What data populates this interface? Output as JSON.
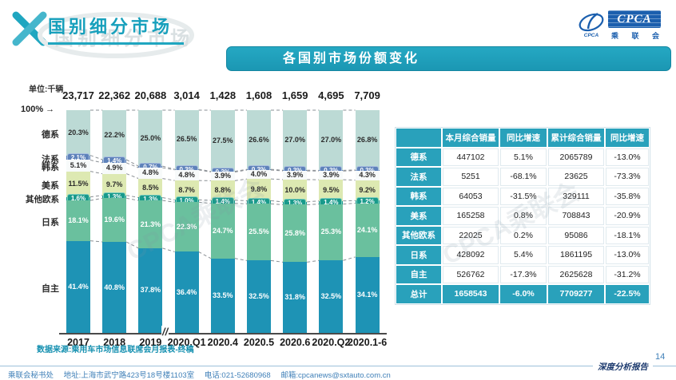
{
  "header": {
    "page_title": "国别细分市场",
    "banner_title": "各国别市场份额变化",
    "logo": {
      "brand": "CPCA",
      "brand_cn": "乘 联 会",
      "swoosh_caption": "CPCA"
    }
  },
  "icons": {
    "arrow_right": "→"
  },
  "chart": {
    "unit_label": "单位:千辆",
    "axis_100_label": "100%",
    "break_mark": "//",
    "source_note": "数据来源:乘用车市场信息联席会月报表-终稿"
  },
  "chart_data": {
    "type": "bar",
    "subtype": "100pct-stacked-bar",
    "title": "各国别市场份额变化",
    "unit": "千辆",
    "ylim": [
      0,
      100
    ],
    "x": [
      "2017",
      "2018",
      "2019",
      "2020.Q1",
      "2020.4",
      "2020.5",
      "2020.6",
      "2020.Q2",
      "2020.1-6"
    ],
    "column_totals_thousand_units": [
      "23,717",
      "22,362",
      "20,688",
      "3,014",
      "1,428",
      "1,608",
      "1,659",
      "4,695",
      "7,709"
    ],
    "series": [
      {
        "name": "德系",
        "style": "fill",
        "color": "#bcdad5",
        "label_color": "#2b2b2b",
        "values": [
          20.3,
          22.2,
          25.0,
          26.5,
          27.5,
          26.6,
          27.0,
          27.0,
          26.8
        ]
      },
      {
        "name": "法系",
        "style": "badge",
        "color": "#5e82ba",
        "badge_border": "#a9bedf",
        "values": [
          2.1,
          1.4,
          0.7,
          0.3,
          0.3,
          0.3,
          0.3,
          0.3,
          0.3
        ]
      },
      {
        "name": "韩系",
        "style": "fill",
        "color": "#f7fafa",
        "label_color": "#2b2b2b",
        "values": [
          5.1,
          4.9,
          4.8,
          4.8,
          3.9,
          4.0,
          3.9,
          3.9,
          4.3
        ]
      },
      {
        "name": "美系",
        "style": "fill",
        "color": "#dde9b2",
        "label_color": "#2b2b2b",
        "values": [
          11.5,
          9.7,
          8.5,
          8.7,
          8.8,
          9.8,
          10.0,
          9.5,
          9.2
        ]
      },
      {
        "name": "其他欧系",
        "style": "badge",
        "color": "#189a8b",
        "badge_border": "#7ecdbf",
        "values": [
          1.6,
          1.3,
          1.3,
          1.0,
          1.4,
          1.4,
          1.3,
          1.4,
          1.2
        ]
      },
      {
        "name": "日系",
        "style": "fill",
        "color": "#6ac09e",
        "label_color": "#ffffff",
        "values": [
          18.1,
          19.6,
          21.3,
          22.3,
          24.7,
          25.5,
          25.8,
          25.3,
          24.1
        ]
      },
      {
        "name": "自主",
        "style": "fill",
        "color": "#1e93b5",
        "label_color": "#ffffff",
        "values": [
          41.4,
          40.8,
          37.8,
          36.4,
          33.5,
          32.5,
          31.8,
          32.5,
          34.1
        ]
      }
    ]
  },
  "table": {
    "headers": [
      "",
      "本月综合销量",
      "同比增速",
      "累计综合销量",
      "同比增速"
    ],
    "rows": [
      [
        "德系",
        "447102",
        "5.1%",
        "2065789",
        "-13.0%"
      ],
      [
        "法系",
        "5251",
        "-68.1%",
        "23625",
        "-73.3%"
      ],
      [
        "韩系",
        "64053",
        "-31.5%",
        "329111",
        "-35.8%"
      ],
      [
        "美系",
        "165258",
        "0.8%",
        "708843",
        "-20.9%"
      ],
      [
        "其他欧系",
        "22025",
        "0.2%",
        "95086",
        "-18.1%"
      ],
      [
        "日系",
        "428092",
        "5.4%",
        "1861195",
        "-13.0%"
      ],
      [
        "自主",
        "526762",
        "-17.3%",
        "2625628",
        "-31.2%"
      ]
    ],
    "total_row": [
      "总计",
      "1658543",
      "-6.0%",
      "7709277",
      "-22.5%"
    ]
  },
  "footer": {
    "secretariat": "乘联会秘书处",
    "address": "地址:上海市武宁路423号18号楼1103室",
    "phone": "电话:021-52680968",
    "email": "邮箱:cpcanews@sxtauto.com.cn",
    "report_label": "深度分析报告",
    "page_number": "14"
  },
  "watermark_text": "CPCA乘联会",
  "colors": {
    "accent_teal": "#1d9fbc",
    "table_teal": "#29a1bb",
    "footer_blue": "#4080b8",
    "logo_blue": "#1b5fae",
    "connector_gray": "#8a8f94"
  }
}
